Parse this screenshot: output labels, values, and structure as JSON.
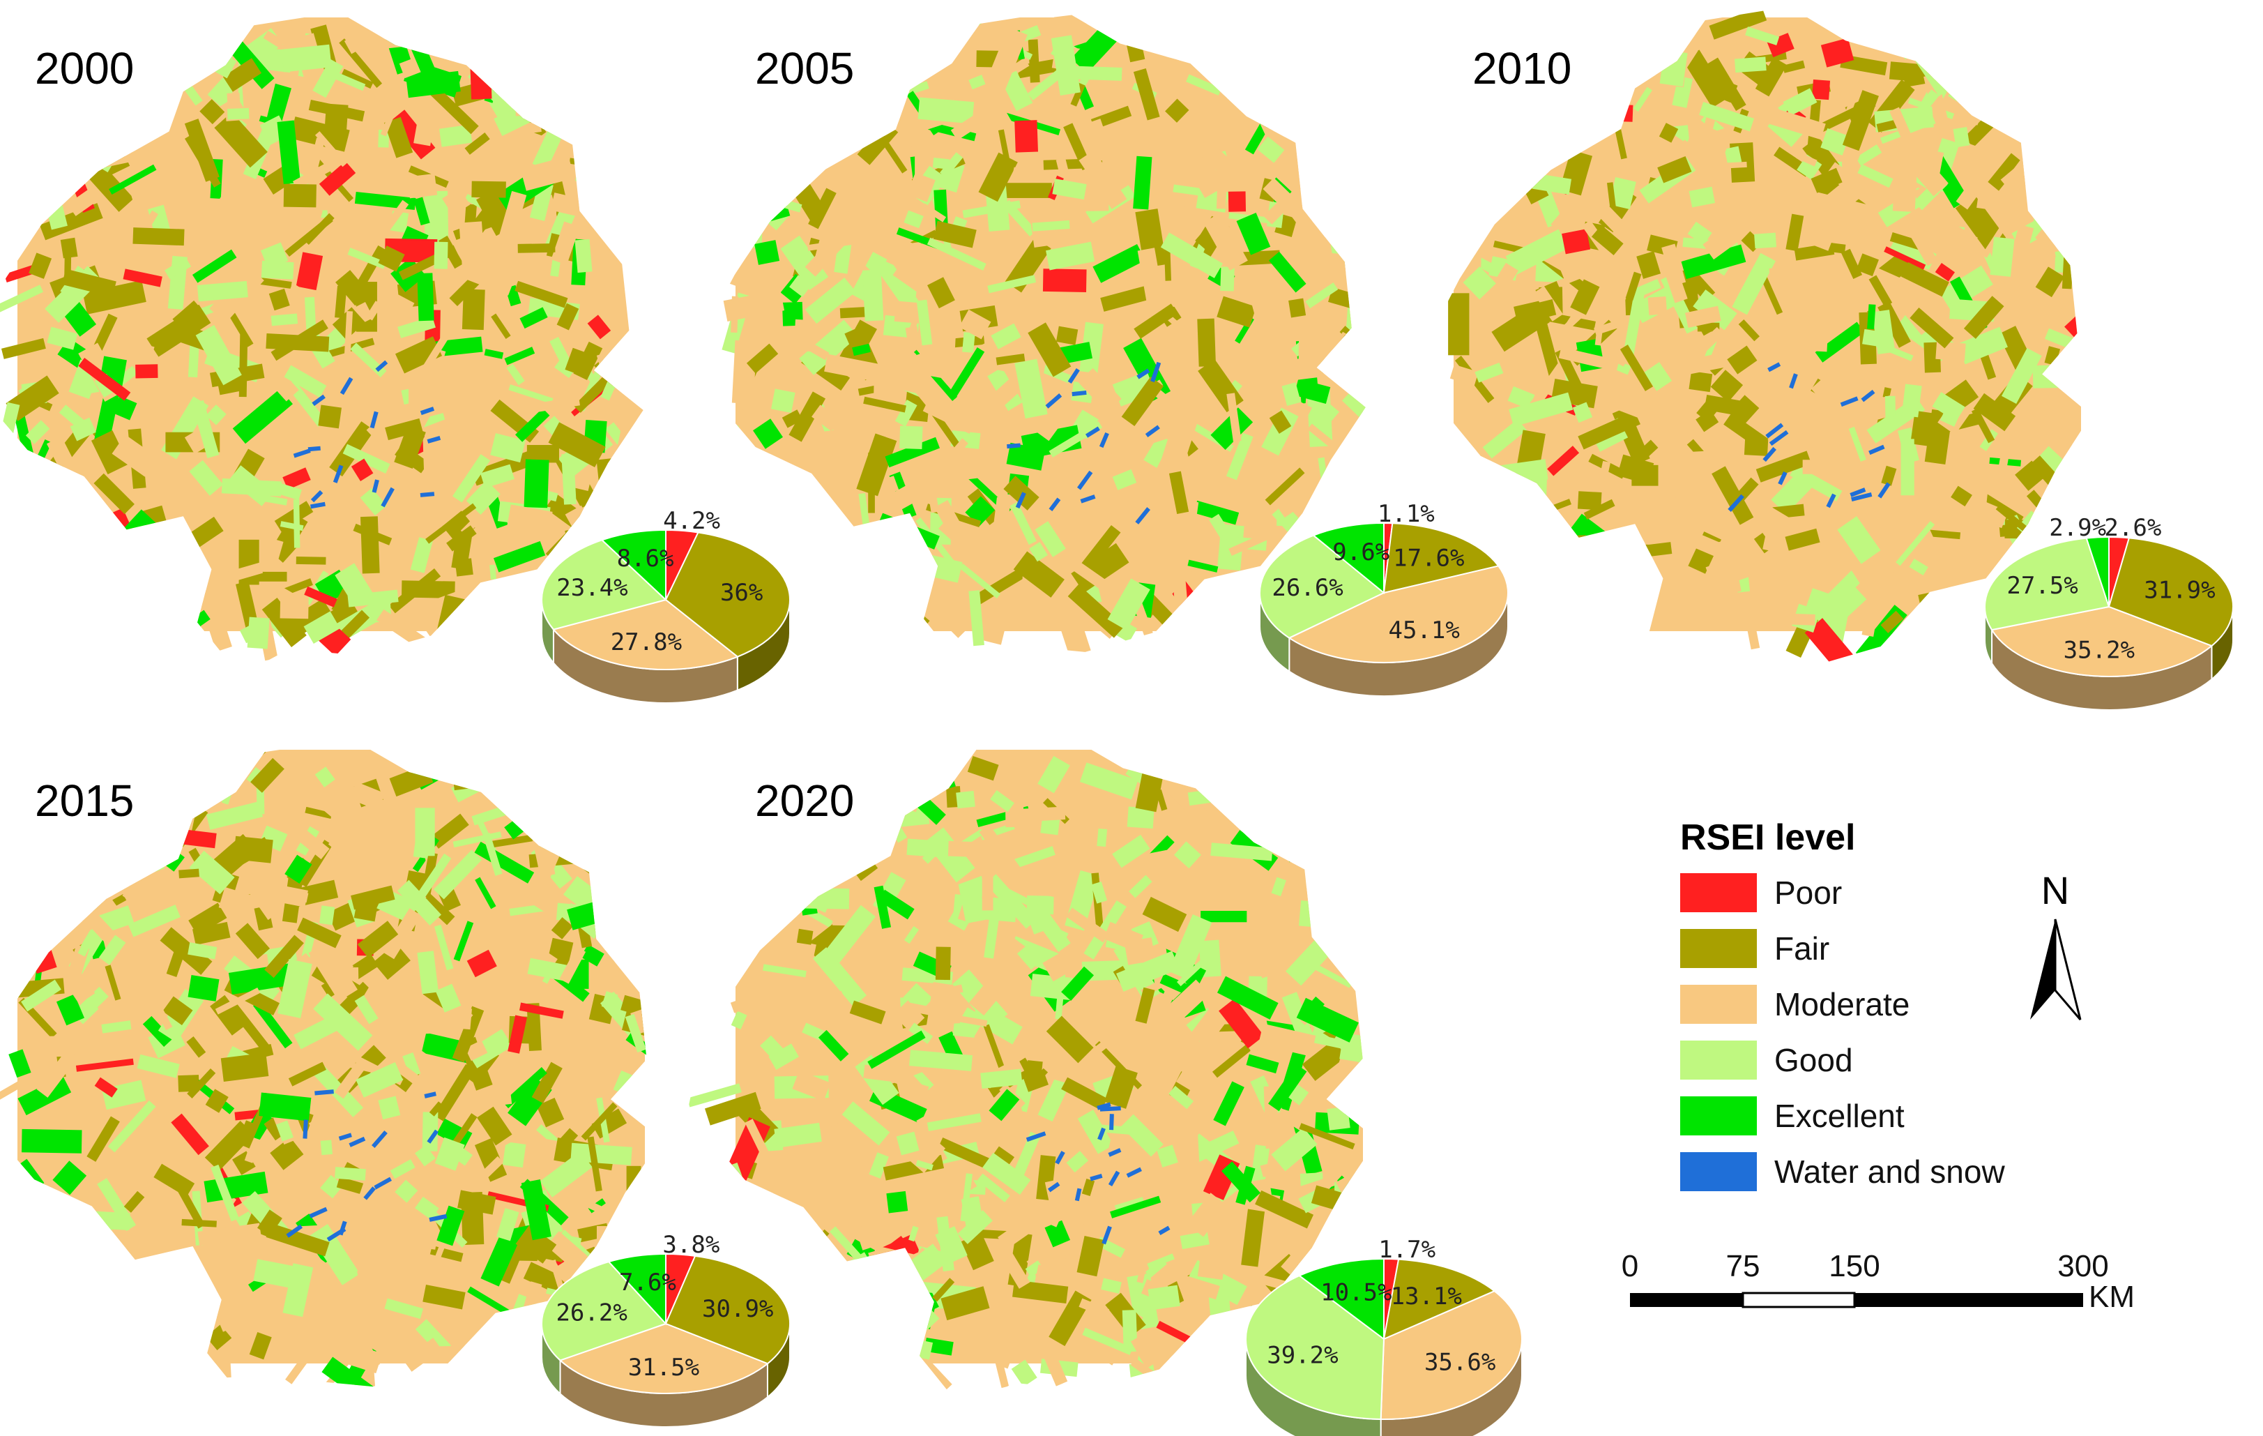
{
  "colors": {
    "Poor": "#ff2020",
    "Fair": "#a8a000",
    "Moderate": "#f8c880",
    "Good": "#bff880",
    "Excellent": "#00e400",
    "Water and snow": "#1f6fd8"
  },
  "panels": [
    {
      "year": "2000",
      "slices": [
        {
          "cls": "Poor",
          "value": 4.2,
          "label": "4.2%"
        },
        {
          "cls": "Fair",
          "value": 36,
          "label": "36%"
        },
        {
          "cls": "Moderate",
          "value": 27.8,
          "label": "27.8%"
        },
        {
          "cls": "Good",
          "value": 23.4,
          "label": "23.4%"
        },
        {
          "cls": "Excellent",
          "value": 8.6,
          "label": "8.6%"
        }
      ]
    },
    {
      "year": "2005",
      "slices": [
        {
          "cls": "Poor",
          "value": 1.1,
          "label": "1.1%"
        },
        {
          "cls": "Fair",
          "value": 17.6,
          "label": "17.6%"
        },
        {
          "cls": "Moderate",
          "value": 45.1,
          "label": "45.1%"
        },
        {
          "cls": "Good",
          "value": 26.6,
          "label": "26.6%"
        },
        {
          "cls": "Excellent",
          "value": 9.6,
          "label": "9.6%"
        }
      ]
    },
    {
      "year": "2010",
      "slices": [
        {
          "cls": "Poor",
          "value": 2.6,
          "label": "2.6%"
        },
        {
          "cls": "Fair",
          "value": 31.9,
          "label": "31.9%"
        },
        {
          "cls": "Moderate",
          "value": 35.2,
          "label": "35.2%"
        },
        {
          "cls": "Good",
          "value": 27.5,
          "label": "27.5%"
        },
        {
          "cls": "Excellent",
          "value": 2.9,
          "label": "2.9%"
        }
      ]
    },
    {
      "year": "2015",
      "slices": [
        {
          "cls": "Poor",
          "value": 3.8,
          "label": "3.8%"
        },
        {
          "cls": "Fair",
          "value": 30.9,
          "label": "30.9%"
        },
        {
          "cls": "Moderate",
          "value": 31.5,
          "label": "31.5%"
        },
        {
          "cls": "Good",
          "value": 26.2,
          "label": "26.2%"
        },
        {
          "cls": "Excellent",
          "value": 7.6,
          "label": "7.6%"
        }
      ]
    },
    {
      "year": "2020",
      "slices": [
        {
          "cls": "Poor",
          "value": 1.7,
          "label": "1.7%"
        },
        {
          "cls": "Fair",
          "value": 13.1,
          "label": "13.1%"
        },
        {
          "cls": "Moderate",
          "value": 35.6,
          "label": "35.6%"
        },
        {
          "cls": "Good",
          "value": 39.2,
          "label": "39.2%"
        },
        {
          "cls": "Excellent",
          "value": 10.5,
          "label": "10.5%"
        }
      ]
    }
  ],
  "legend": {
    "title": "RSEI level",
    "items": [
      "Poor",
      "Fair",
      "Moderate",
      "Good",
      "Excellent",
      "Water and snow"
    ]
  },
  "north_arrow": {
    "label": "N"
  },
  "scale_bar": {
    "ticks": [
      "0",
      "75",
      "150",
      "300"
    ],
    "unit": "KM"
  }
}
